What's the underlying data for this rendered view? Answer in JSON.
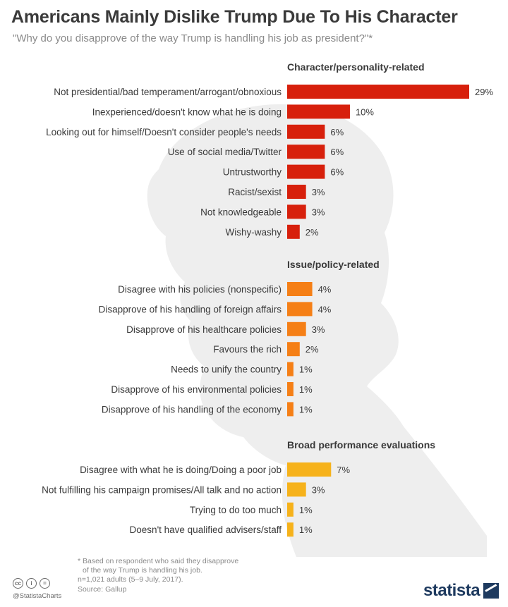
{
  "title": "Americans Mainly Dislike Trump Due To His Character",
  "subtitle": "\"Why do you disapprove of the way Trump is handling his job as president?\"*",
  "colors": {
    "character": "#d7200c",
    "issue": "#f57f16",
    "broad": "#f6b21b",
    "text": "#3a3a3a",
    "silhouette": "#ececec"
  },
  "chart_data": {
    "type": "bar",
    "orientation": "horizontal",
    "unit": "%",
    "xlim": [
      0,
      29
    ],
    "groups": [
      {
        "name": "Character/personality-related",
        "color_key": "character",
        "categories": [
          "Not presidential/bad temperament/arrogant/obnoxious",
          "Inexperienced/doesn't know what he is doing",
          "Looking out for himself/Doesn't consider people's needs",
          "Use of social media/Twitter",
          "Untrustworthy",
          "Racist/sexist",
          "Not knowledgeable",
          "Wishy-washy"
        ],
        "values": [
          29,
          10,
          6,
          6,
          6,
          3,
          3,
          2
        ],
        "labels": [
          "29%",
          "10%",
          "6%",
          "6%",
          "6%",
          "3%",
          "3%",
          "2%"
        ]
      },
      {
        "name": "Issue/policy-related",
        "color_key": "issue",
        "categories": [
          "Disagree with his policies (nonspecific)",
          "Disapprove of his handling of foreign affairs",
          "Disapprove of his healthcare policies",
          "Favours the rich",
          "Needs to unify the country",
          "Disapprove of his environmental policies",
          "Disapprove of his handling of the economy"
        ],
        "values": [
          4,
          4,
          3,
          2,
          1,
          1,
          1
        ],
        "labels": [
          "4%",
          "4%",
          "3%",
          "2%",
          "1%",
          "1%",
          "1%"
        ]
      },
      {
        "name": "Broad performance evaluations",
        "color_key": "broad",
        "categories": [
          "Disagree with what he is doing/Doing a poor job",
          "Not fulfilling his campaign promises/All talk and no action",
          "Trying to do too much",
          "Doesn't have qualified advisers/staff"
        ],
        "values": [
          7,
          3,
          1,
          1
        ],
        "labels": [
          "7%",
          "3%",
          "1%",
          "1%"
        ]
      }
    ]
  },
  "footnote": {
    "line1": "* Based on respondent who said they disapprove",
    "line2": "of the way Trump is handling his job.",
    "line3": "n=1,021 adults (5–9 July, 2017).",
    "source": "Source: Gallup"
  },
  "footer": {
    "handle": "@StatistaCharts",
    "brand": "statista",
    "cc_icons": [
      "cc",
      "i",
      "="
    ]
  }
}
